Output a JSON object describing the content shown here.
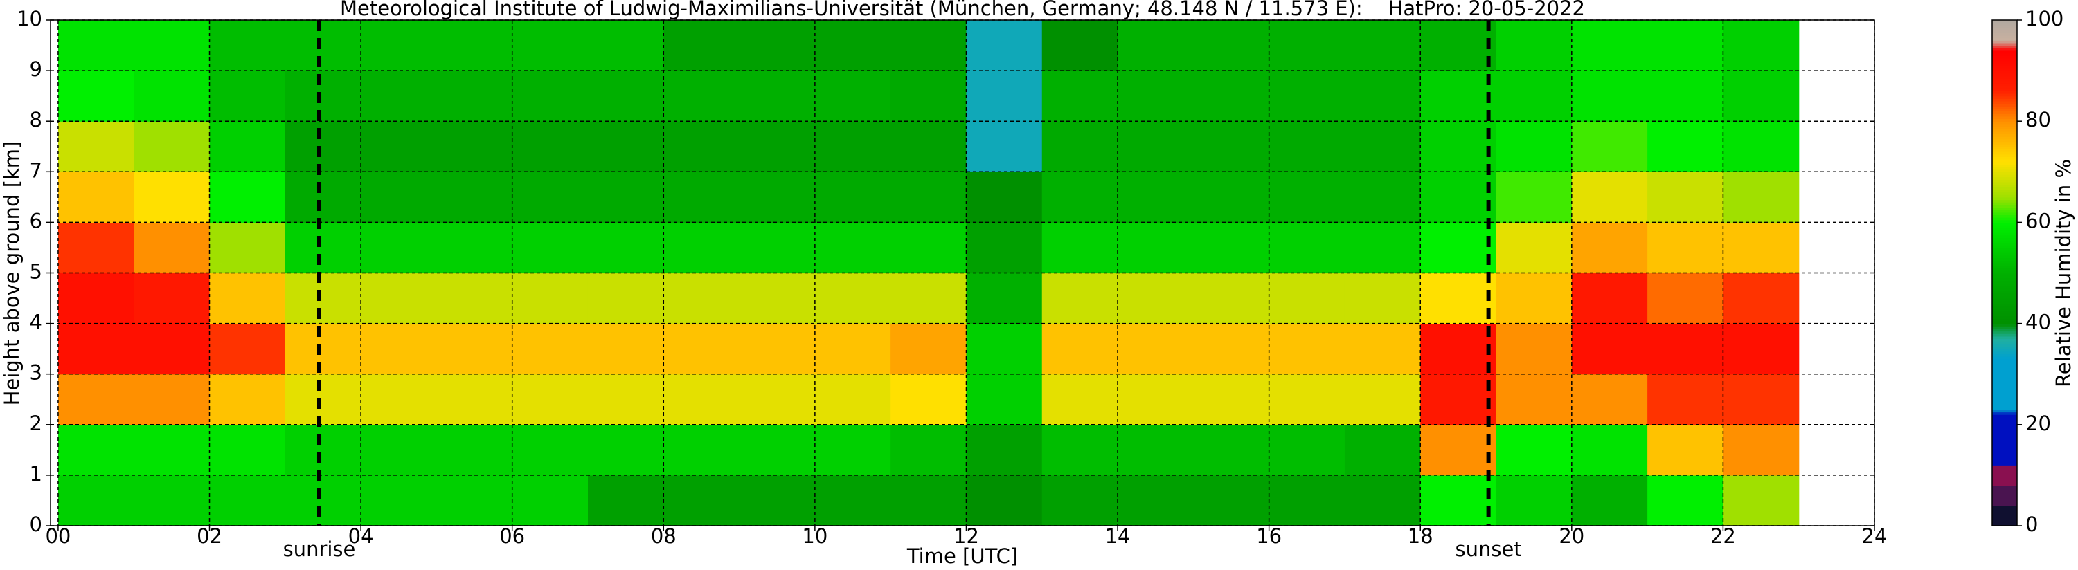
{
  "chart_data": {
    "type": "heatmap",
    "title": "Meteorological Institute of Ludwig-Maximilians-Universität (München, Germany; 48.148 N / 11.573 E):    HatPro: 20-05-2022",
    "x_label": "Time [UTC]",
    "y_label": "Height above ground [km]",
    "colorbar_label": "Relative Humidity in %",
    "xbins": [
      0,
      1,
      2,
      3,
      4,
      5,
      6,
      7,
      8,
      9,
      10,
      11,
      12,
      13,
      14,
      15,
      16,
      17,
      18,
      19,
      20,
      21,
      22,
      23
    ],
    "ybins": [
      0,
      1,
      2,
      3,
      4,
      5,
      6,
      7,
      8,
      9,
      10
    ],
    "values": [
      [
        55,
        55,
        55,
        55,
        55,
        55,
        55,
        45,
        45,
        45,
        45,
        45,
        40,
        45,
        45,
        45,
        45,
        45,
        60,
        55,
        50,
        60,
        65
      ],
      [
        58,
        58,
        58,
        55,
        55,
        55,
        55,
        55,
        55,
        55,
        55,
        52,
        45,
        52,
        52,
        52,
        52,
        50,
        80,
        60,
        58,
        75,
        80
      ],
      [
        80,
        80,
        75,
        70,
        70,
        70,
        70,
        70,
        70,
        70,
        70,
        72,
        55,
        70,
        70,
        70,
        70,
        70,
        88,
        80,
        80,
        85,
        85
      ],
      [
        90,
        90,
        85,
        75,
        75,
        75,
        75,
        75,
        75,
        75,
        75,
        78,
        55,
        75,
        75,
        75,
        75,
        75,
        90,
        80,
        90,
        90,
        90
      ],
      [
        90,
        88,
        75,
        68,
        68,
        68,
        68,
        68,
        68,
        68,
        68,
        68,
        50,
        68,
        68,
        68,
        68,
        68,
        72,
        75,
        88,
        82,
        85
      ],
      [
        85,
        80,
        65,
        55,
        55,
        55,
        55,
        55,
        55,
        55,
        55,
        55,
        45,
        55,
        55,
        55,
        55,
        55,
        60,
        70,
        78,
        75,
        75
      ],
      [
        75,
        72,
        60,
        48,
        48,
        48,
        48,
        48,
        48,
        48,
        48,
        48,
        40,
        50,
        50,
        50,
        50,
        50,
        55,
        62,
        70,
        68,
        65
      ],
      [
        68,
        65,
        55,
        45,
        45,
        45,
        45,
        45,
        45,
        45,
        45,
        45,
        35,
        48,
        48,
        48,
        48,
        48,
        55,
        58,
        62,
        60,
        58
      ],
      [
        60,
        58,
        52,
        50,
        50,
        50,
        50,
        50,
        50,
        50,
        50,
        48,
        35,
        50,
        50,
        50,
        50,
        50,
        55,
        55,
        58,
        58,
        55
      ],
      [
        58,
        58,
        52,
        52,
        52,
        52,
        52,
        52,
        45,
        45,
        45,
        45,
        35,
        40,
        50,
        50,
        50,
        50,
        50,
        55,
        58,
        58,
        55
      ]
    ],
    "xlim": [
      -0.1,
      24
    ],
    "ylim": [
      0,
      10
    ],
    "xticks": [
      {
        "value": 0,
        "label": "00"
      },
      {
        "value": 2,
        "label": "02"
      },
      {
        "value": 4,
        "label": "04"
      },
      {
        "value": 6,
        "label": "06"
      },
      {
        "value": 8,
        "label": "08"
      },
      10,
      12,
      14,
      16,
      18,
      20,
      22,
      24
    ],
    "yticks": [
      0,
      1,
      2,
      3,
      4,
      5,
      6,
      7,
      8,
      9,
      10
    ],
    "clim": [
      0,
      100
    ],
    "cticks": [
      0,
      20,
      40,
      60,
      80,
      100
    ],
    "colormap": [
      [
        0,
        "#101030"
      ],
      [
        4,
        "#101030"
      ],
      [
        4,
        "#4a1450"
      ],
      [
        8,
        "#4a1450"
      ],
      [
        8,
        "#8a1050"
      ],
      [
        12,
        "#8a1050"
      ],
      [
        12,
        "#0010c0"
      ],
      [
        22,
        "#0010c0"
      ],
      [
        23,
        "#00a0d0"
      ],
      [
        33,
        "#00a0d0"
      ],
      [
        37,
        "#20b0a0"
      ],
      [
        40,
        "#009000"
      ],
      [
        50,
        "#00b000"
      ],
      [
        60,
        "#00f000"
      ],
      [
        65,
        "#a0e000"
      ],
      [
        72,
        "#ffe000"
      ],
      [
        80,
        "#ff9000"
      ],
      [
        86,
        "#ff2000"
      ],
      [
        94,
        "#ff0000"
      ],
      [
        96,
        "#c8b0a0"
      ],
      [
        100,
        "#b0a8a0"
      ]
    ],
    "grid": true,
    "annotations": [
      {
        "text": "sunrise",
        "x": 3.45
      },
      {
        "text": "sunset",
        "x": 18.9
      }
    ]
  }
}
